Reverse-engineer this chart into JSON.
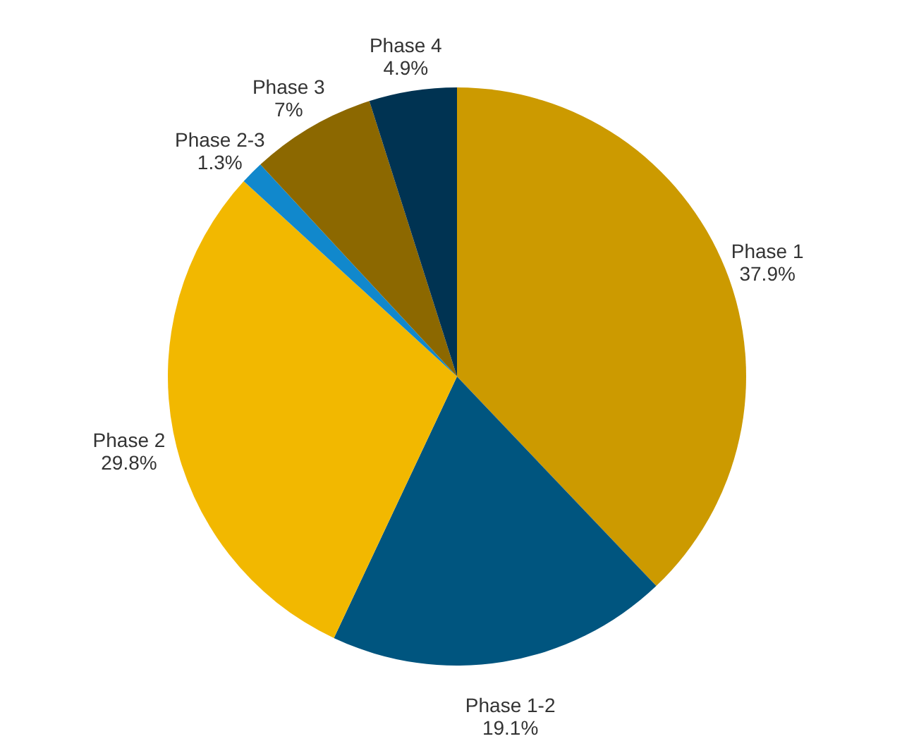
{
  "chart_data": {
    "type": "pie",
    "categories": [
      "Phase 1",
      "Phase 1-2",
      "Phase 2",
      "Phase 2-3",
      "Phase 3",
      "Phase 4"
    ],
    "values": [
      37.9,
      19.1,
      29.8,
      1.3,
      7,
      4.9
    ],
    "colors": [
      "#cc9a00",
      "#00557f",
      "#f2b800",
      "#1188cc",
      "#8c6800",
      "#003352"
    ],
    "value_labels": [
      "37.9%",
      "19.1%",
      "29.8%",
      "1.3%",
      "7%",
      "4.9%"
    ]
  }
}
